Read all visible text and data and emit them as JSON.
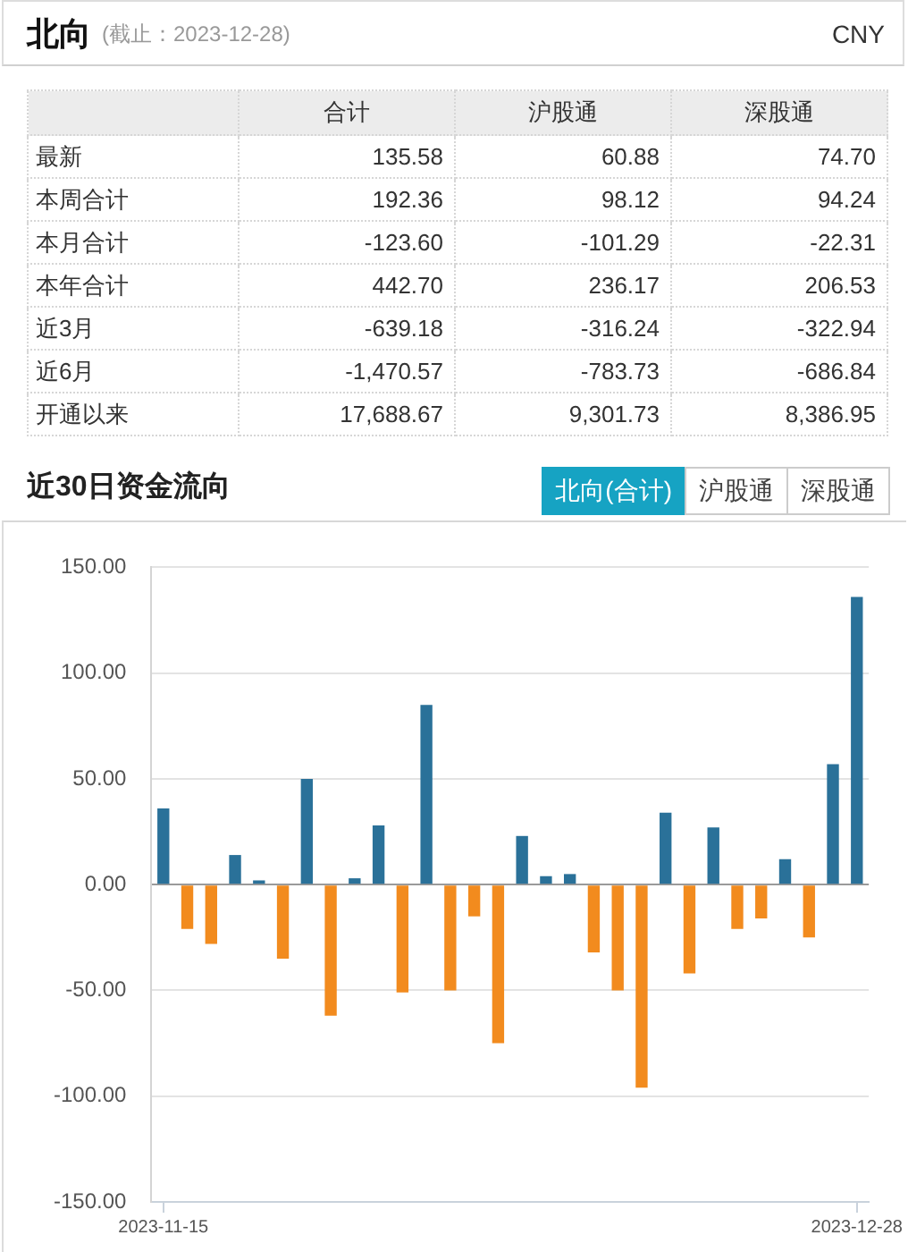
{
  "chart_data": [
    {
      "type": "other",
      "title": "北向",
      "subtitle": "(截止：2023-12-28)",
      "annotations": [
        "CNY"
      ],
      "categories": [
        "最新",
        "本周合计",
        "本月合计",
        "本年合计",
        "近3月",
        "近6月",
        "开通以来"
      ],
      "series": [
        {
          "name": "合计",
          "values": [
            135.58,
            192.36,
            -123.6,
            442.7,
            -639.18,
            -1470.57,
            17688.67
          ],
          "value_labels": [
            "135.58",
            "192.36",
            "-123.60",
            "442.70",
            "-639.18",
            "-1,470.57",
            "17,688.67"
          ]
        },
        {
          "name": "沪股通",
          "values": [
            60.88,
            98.12,
            -101.29,
            236.17,
            -316.24,
            -783.73,
            9301.73
          ],
          "value_labels": [
            "60.88",
            "98.12",
            "-101.29",
            "236.17",
            "-316.24",
            "-783.73",
            "9,301.73"
          ]
        },
        {
          "name": "深股通",
          "values": [
            74.7,
            94.24,
            -22.31,
            206.53,
            -322.94,
            -686.84,
            8386.95
          ],
          "value_labels": [
            "74.70",
            "94.24",
            "-22.31",
            "206.53",
            "-322.94",
            "-686.84",
            "8,386.95"
          ]
        }
      ]
    },
    {
      "type": "bar",
      "title": "近30日资金流向",
      "annotations": [
        "北向(合计)",
        "沪股通",
        "深股通"
      ],
      "categories": [
        "2023-11-15",
        null,
        null,
        null,
        null,
        null,
        null,
        null,
        null,
        null,
        null,
        null,
        null,
        null,
        null,
        null,
        null,
        null,
        null,
        null,
        null,
        null,
        null,
        null,
        null,
        null,
        null,
        null,
        null,
        "2023-12-28"
      ],
      "values": [
        36,
        -21,
        -28,
        14,
        2,
        -35,
        50,
        -62,
        3,
        28,
        -51,
        85,
        -50,
        -15,
        -75,
        23,
        4,
        5,
        -32,
        -50,
        -96,
        34,
        -42,
        27,
        -21,
        -16,
        12,
        -25,
        57,
        136
      ],
      "colors": [
        "#2a7199",
        "#f28b1e",
        "#f28b1e",
        "#2a7199",
        "#2a7199",
        "#f28b1e",
        "#2a7199",
        "#f28b1e",
        "#2a7199",
        "#2a7199",
        "#f28b1e",
        "#2a7199",
        "#f28b1e",
        "#f28b1e",
        "#f28b1e",
        "#2a7199",
        "#2a7199",
        "#2a7199",
        "#f28b1e",
        "#f28b1e",
        "#f28b1e",
        "#2a7199",
        "#f28b1e",
        "#2a7199",
        "#f28b1e",
        "#f28b1e",
        "#2a7199",
        "#f28b1e",
        "#2a7199",
        "#2a7199"
      ],
      "ylim": [
        -150,
        150
      ],
      "yticks": [
        {
          "value": -150,
          "label": "-150.00"
        },
        {
          "value": -100,
          "label": "-100.00"
        },
        {
          "value": -50,
          "label": "-50.00"
        },
        {
          "value": 0,
          "label": "0.00"
        },
        {
          "value": 50,
          "label": "50.00"
        },
        {
          "value": 100,
          "label": "100.00"
        },
        {
          "value": 150,
          "label": "150.00"
        }
      ],
      "grid": "y"
    }
  ]
}
